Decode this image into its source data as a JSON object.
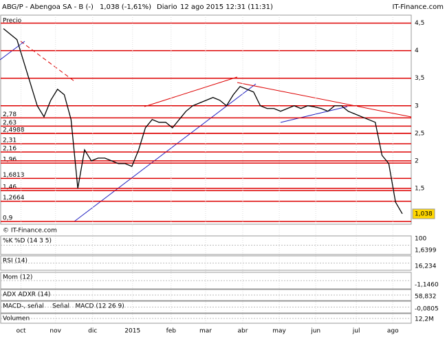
{
  "header": {
    "title": "ABG/P - Abengoa SA - B (-)",
    "quote": "1,038 (-1,61%)",
    "period": "Diario",
    "date": "12 ago 2015 12:31 (11:31)",
    "site": "IT-Finance.com"
  },
  "chart_data": {
    "type": "line",
    "title": "Precio",
    "footer": "© IT-Finance.com",
    "series": [
      {
        "name": "ABG/P",
        "color": "#000000",
        "values": [
          4.4,
          4.3,
          4.2,
          3.8,
          3.4,
          3.0,
          2.8,
          3.1,
          3.3,
          3.2,
          2.75,
          1.5,
          2.2,
          2.0,
          2.05,
          2.05,
          2.0,
          1.95,
          1.95,
          1.9,
          2.2,
          2.6,
          2.75,
          2.7,
          2.7,
          2.6,
          2.75,
          2.9,
          3.0,
          3.05,
          3.1,
          3.15,
          3.1,
          3.0,
          3.2,
          3.35,
          3.3,
          3.25,
          3.0,
          2.95,
          2.95,
          2.9,
          2.95,
          3.0,
          2.95,
          3.0,
          2.98,
          2.95,
          2.9,
          3.0,
          3.0,
          2.9,
          2.85,
          2.8,
          2.75,
          2.7,
          2.1,
          1.95,
          1.25,
          1.04
        ]
      }
    ],
    "last": {
      "value": 1.038,
      "label": "1,038"
    },
    "ylim": [
      0.85,
      4.62
    ],
    "yticks": [
      {
        "value": 4.5,
        "label": "4,5"
      },
      4,
      {
        "value": 3.5,
        "label": "3,5"
      },
      3,
      {
        "value": 2.5,
        "label": "2,5"
      },
      2,
      {
        "value": 1.5,
        "label": "1,5"
      }
    ],
    "levels": [
      {
        "value": 2.78,
        "label": "2,78"
      },
      {
        "value": 2.63,
        "label": "2,63"
      },
      {
        "value": 2.4988,
        "label": "2,4988"
      },
      {
        "value": 2.31,
        "label": "2,31"
      },
      {
        "value": 2.16,
        "label": "2,16"
      },
      {
        "value": 1.96,
        "label": "1,96"
      },
      {
        "value": 1.6813,
        "label": "1,6813"
      },
      {
        "value": 1.46,
        "label": "1,46"
      },
      {
        "value": 1.2664,
        "label": "1,2664"
      },
      {
        "value": 0.9,
        "label": "0,9"
      }
    ],
    "xlim": [
      0,
      59
    ],
    "xticks": [
      {
        "value": 2.6,
        "label": "oct"
      },
      {
        "value": 7.7,
        "label": "nov"
      },
      {
        "value": 13.2,
        "label": "dic"
      },
      {
        "value": 19.1,
        "label": "2015"
      },
      {
        "value": 24.8,
        "label": "feb"
      },
      {
        "value": 29.9,
        "label": "mar"
      },
      {
        "value": 35.4,
        "label": "abr"
      },
      {
        "value": 40.8,
        "label": "may"
      },
      {
        "value": 46.2,
        "label": "jun"
      },
      {
        "value": 52.2,
        "label": "jul"
      },
      {
        "value": 57.6,
        "label": "ago"
      }
    ]
  },
  "indicators": [
    {
      "label": "%K",
      "detail": "%D (14 3 5)",
      "top": "100",
      "value": "1,6399"
    },
    {
      "label": "RSI (14)",
      "value": "16,234"
    },
    {
      "label": "Mom (12)",
      "value": "-1,1460"
    },
    {
      "label": "ADX",
      "detail": "ADXR (14)",
      "value": "58,832"
    },
    {
      "label": "MACD-, señal",
      "detail": "Señal",
      "extra": "MACD (12 26 9)",
      "value": "-0,0805"
    },
    {
      "label": "Volumen",
      "value": "12,2M"
    }
  ]
}
